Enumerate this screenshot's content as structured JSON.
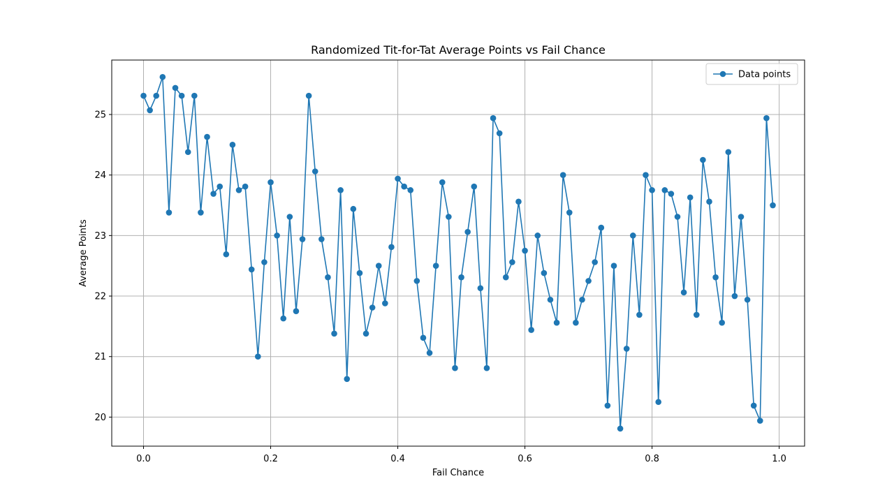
{
  "chart_data": {
    "type": "line",
    "title": "Randomized Tit-for-Tat Average Points vs Fail Chance",
    "xlabel": "Fail Chance",
    "ylabel": "Average Points",
    "xlim": [
      -0.05,
      1.04
    ],
    "ylim": [
      19.52,
      25.9
    ],
    "xticks": [
      0.0,
      0.2,
      0.4,
      0.6,
      0.8,
      1.0
    ],
    "xtick_labels": [
      "0.0",
      "0.2",
      "0.4",
      "0.6",
      "0.8",
      "1.0"
    ],
    "yticks": [
      20,
      21,
      22,
      23,
      24,
      25
    ],
    "ytick_labels": [
      "20",
      "21",
      "22",
      "23",
      "24",
      "25"
    ],
    "grid": true,
    "legend_position": "top-right",
    "color": "#1f77b4",
    "series": [
      {
        "name": "Data points",
        "x": [
          0.0,
          0.01,
          0.02,
          0.03,
          0.04,
          0.05,
          0.06,
          0.07,
          0.08,
          0.09,
          0.1,
          0.11,
          0.12,
          0.13,
          0.14,
          0.15,
          0.16,
          0.17,
          0.18,
          0.19,
          0.2,
          0.21,
          0.22,
          0.23,
          0.24,
          0.25,
          0.26,
          0.27,
          0.28,
          0.29,
          0.3,
          0.31,
          0.32,
          0.33,
          0.34,
          0.35,
          0.36,
          0.37,
          0.38,
          0.39,
          0.4,
          0.41,
          0.42,
          0.43,
          0.44,
          0.45,
          0.46,
          0.47,
          0.48,
          0.49,
          0.5,
          0.51,
          0.52,
          0.53,
          0.54,
          0.55,
          0.56,
          0.57,
          0.58,
          0.59,
          0.6,
          0.61,
          0.62,
          0.63,
          0.64,
          0.65,
          0.66,
          0.67,
          0.68,
          0.69,
          0.7,
          0.71,
          0.72,
          0.73,
          0.74,
          0.75,
          0.76,
          0.77,
          0.78,
          0.79,
          0.8,
          0.81,
          0.82,
          0.83,
          0.84,
          0.85,
          0.86,
          0.87,
          0.88,
          0.89,
          0.9,
          0.91,
          0.92,
          0.93,
          0.94,
          0.95,
          0.96,
          0.97,
          0.98,
          0.99
        ],
        "y": [
          25.31,
          25.07,
          25.31,
          25.62,
          23.38,
          25.44,
          25.31,
          24.38,
          25.31,
          23.38,
          24.63,
          23.69,
          23.81,
          22.69,
          24.5,
          23.75,
          23.81,
          22.44,
          21.0,
          22.56,
          23.88,
          23.0,
          21.63,
          23.31,
          21.75,
          22.94,
          25.31,
          24.06,
          22.94,
          22.31,
          21.38,
          23.75,
          20.63,
          23.44,
          22.38,
          21.38,
          21.81,
          22.5,
          21.88,
          22.81,
          23.94,
          23.81,
          23.75,
          22.25,
          21.31,
          21.06,
          22.5,
          23.88,
          23.31,
          20.81,
          22.31,
          23.06,
          23.81,
          22.13,
          20.81,
          24.94,
          24.69,
          22.31,
          22.56,
          23.56,
          22.75,
          21.44,
          23.0,
          22.38,
          21.94,
          21.56,
          24.0,
          23.38,
          21.56,
          21.94,
          22.25,
          22.56,
          23.13,
          20.19,
          22.5,
          19.81,
          21.13,
          23.0,
          21.69,
          24.0,
          23.75,
          20.25,
          23.75,
          23.69,
          23.31,
          22.06,
          23.63,
          21.69,
          24.25,
          23.56,
          22.31,
          21.56,
          24.38,
          22.0,
          23.31,
          21.94,
          20.19,
          19.94,
          24.94,
          23.5
        ]
      }
    ]
  }
}
